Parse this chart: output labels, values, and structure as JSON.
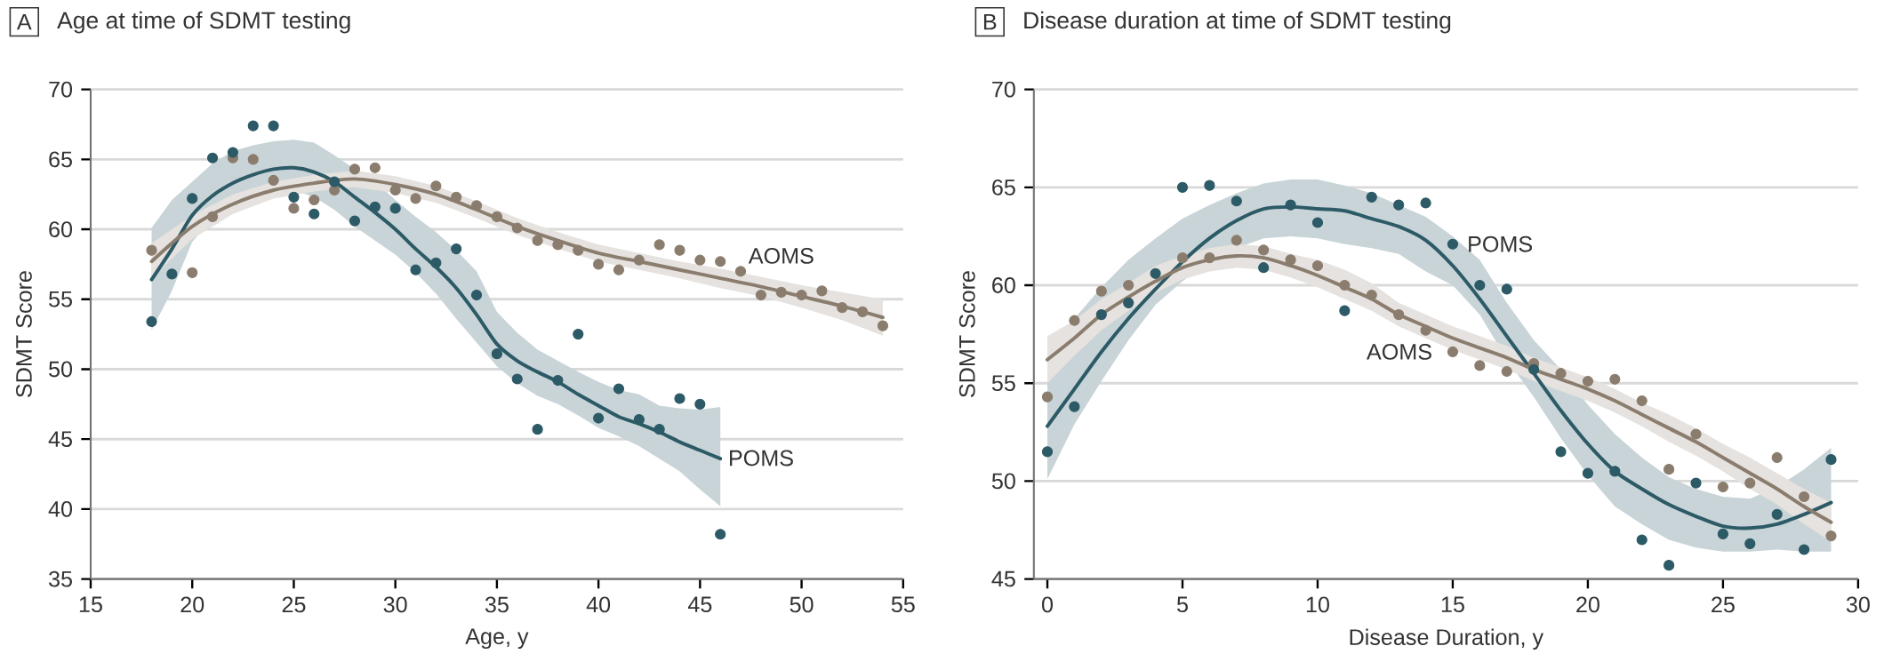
{
  "chart_data": [
    {
      "type": "scatter",
      "title": "Age at time of SDMT testing",
      "xlabel": "Age, y",
      "ylabel": "SDMT Score",
      "xlim": [
        15,
        55
      ],
      "ylim": [
        35,
        70
      ],
      "xticks": [
        15,
        20,
        25,
        30,
        35,
        40,
        45,
        50,
        55
      ],
      "yticks": [
        35,
        40,
        45,
        50,
        55,
        60,
        65,
        70
      ],
      "grid": "y",
      "line_style": "solid",
      "annotations": [
        "A"
      ],
      "series": [
        {
          "type": "line",
          "name": "POMS",
          "color": "#2c5a66",
          "x": [
            18,
            19,
            20,
            21,
            22,
            23,
            24,
            25,
            26,
            27,
            28,
            29,
            30,
            31,
            32,
            33,
            34,
            35,
            36,
            37,
            38,
            39,
            40,
            41,
            42,
            43,
            44,
            45,
            46
          ],
          "values": [
            56.4,
            58.6,
            61.0,
            62.4,
            63.3,
            63.9,
            64.3,
            64.4,
            64.1,
            63.4,
            62.3,
            61.2,
            60.0,
            58.6,
            57.3,
            55.8,
            53.9,
            51.8,
            50.6,
            49.8,
            49.1,
            48.2,
            47.4,
            46.6,
            46.1,
            45.5,
            44.8,
            44.2,
            43.6
          ],
          "upper": [
            60.1,
            62.1,
            63.4,
            64.7,
            65.6,
            66.0,
            66.3,
            66.4,
            66.2,
            65.3,
            64.3,
            63.4,
            62.1,
            60.9,
            59.8,
            58.5,
            57.0,
            54.1,
            52.6,
            51.4,
            50.6,
            49.8,
            49.1,
            48.5,
            48.2,
            47.4,
            47.2,
            47.1,
            47.3
          ],
          "lower": [
            52.8,
            55.6,
            59.1,
            60.8,
            61.8,
            62.6,
            62.9,
            62.8,
            62.3,
            61.4,
            60.2,
            59.2,
            58.2,
            56.9,
            55.4,
            53.6,
            51.9,
            50.2,
            49.0,
            48.1,
            47.5,
            46.7,
            45.8,
            45.2,
            44.5,
            43.6,
            42.7,
            41.4,
            40.2
          ]
        },
        {
          "type": "line",
          "name": "AOMS",
          "color": "#8b7d6e",
          "x": [
            18,
            20,
            22,
            24,
            26,
            28,
            30,
            32,
            34,
            36,
            38,
            40,
            42,
            44,
            46,
            48,
            50,
            52,
            54
          ],
          "values": [
            57.7,
            60.2,
            61.8,
            62.8,
            63.3,
            63.6,
            63.2,
            62.5,
            61.4,
            60.2,
            59.2,
            58.3,
            57.7,
            57.1,
            56.5,
            55.9,
            55.2,
            54.5,
            53.7
          ],
          "upper": [
            59.0,
            61.0,
            62.5,
            63.4,
            63.9,
            64.2,
            63.8,
            63.1,
            62.0,
            60.8,
            59.8,
            58.9,
            58.3,
            57.7,
            57.2,
            56.6,
            56.0,
            55.5,
            55.0
          ],
          "lower": [
            56.5,
            59.3,
            61.1,
            62.2,
            62.7,
            63.0,
            62.6,
            61.9,
            60.8,
            59.6,
            58.6,
            57.7,
            57.1,
            56.5,
            55.8,
            55.2,
            54.4,
            53.5,
            52.4
          ]
        },
        {
          "marker": "circle",
          "color": "#8b7d6e",
          "x": [
            18,
            19,
            20,
            21,
            22,
            23,
            24,
            25,
            26,
            27,
            28,
            29,
            30,
            31,
            32,
            33,
            34,
            35,
            36,
            37,
            38,
            39,
            40,
            41,
            42,
            43,
            44,
            45,
            46,
            47,
            48,
            49,
            50,
            51,
            52,
            53,
            54
          ],
          "values": [
            58.5,
            null,
            56.9,
            60.9,
            65.1,
            65.0,
            63.5,
            61.5,
            62.1,
            62.8,
            64.3,
            64.4,
            62.8,
            62.2,
            63.1,
            62.3,
            61.7,
            60.9,
            60.1,
            59.2,
            58.9,
            58.5,
            57.5,
            57.1,
            57.8,
            58.9,
            58.5,
            57.8,
            57.7,
            57.0,
            55.3,
            55.5,
            55.3,
            55.6,
            54.4,
            54.1,
            53.1
          ]
        },
        {
          "marker": "circle",
          "color": "#2c5a66",
          "x": [
            18,
            19,
            20,
            21,
            22,
            23,
            24,
            25,
            26,
            27,
            28,
            29,
            30,
            31,
            32,
            33,
            34,
            35,
            36,
            37,
            38,
            39,
            40,
            41,
            42,
            43,
            44,
            45,
            46
          ],
          "values": [
            53.4,
            56.8,
            62.2,
            65.1,
            65.5,
            67.4,
            67.4,
            62.3,
            61.1,
            63.4,
            60.6,
            61.6,
            61.5,
            57.1,
            57.6,
            58.6,
            55.3,
            51.1,
            49.3,
            45.7,
            49.2,
            52.5,
            46.5,
            48.6,
            46.4,
            45.7,
            47.9,
            47.5,
            38.2
          ]
        }
      ]
    },
    {
      "type": "scatter",
      "title": "Disease duration at time of SDMT testing",
      "xlabel": "Disease Duration, y",
      "ylabel": "SDMT Score",
      "xlim": [
        -0.5,
        30
      ],
      "ylim": [
        45,
        70
      ],
      "xticks": [
        0,
        5,
        10,
        15,
        20,
        25,
        30
      ],
      "yticks": [
        45,
        50,
        55,
        60,
        65,
        70
      ],
      "grid": "y",
      "line_style": "solid",
      "annotations": [
        "B"
      ],
      "series": [
        {
          "type": "line",
          "name": "POMS",
          "color": "#2c5a66",
          "x": [
            0,
            1,
            2,
            3,
            4,
            5,
            6,
            7,
            8,
            9,
            10,
            11,
            12,
            13,
            14,
            15,
            16,
            17,
            18,
            19,
            20,
            21,
            22,
            23,
            24,
            25,
            26,
            27,
            28,
            29
          ],
          "values": [
            52.8,
            54.7,
            56.6,
            58.3,
            59.8,
            61.2,
            62.4,
            63.3,
            63.9,
            64.0,
            63.9,
            63.8,
            63.4,
            63.0,
            62.3,
            61.0,
            59.3,
            57.4,
            55.5,
            53.6,
            51.9,
            50.5,
            49.6,
            48.8,
            48.2,
            47.7,
            47.6,
            47.8,
            48.3,
            48.9
          ],
          "upper": [
            56.0,
            58.3,
            59.9,
            61.3,
            62.4,
            63.4,
            64.1,
            64.7,
            65.2,
            65.4,
            65.4,
            65.1,
            64.7,
            64.1,
            63.5,
            62.5,
            61.3,
            59.1,
            57.2,
            55.7,
            53.9,
            52.4,
            51.2,
            50.2,
            49.6,
            49.2,
            49.1,
            49.7,
            50.6,
            51.7
          ],
          "lower": [
            50.1,
            52.9,
            55.1,
            57.2,
            59.0,
            60.2,
            61.2,
            61.9,
            62.4,
            62.5,
            62.4,
            62.1,
            61.9,
            61.6,
            60.7,
            60.0,
            58.5,
            56.2,
            54.3,
            52.2,
            50.3,
            48.7,
            47.8,
            47.0,
            46.6,
            46.4,
            46.4,
            46.5,
            46.4,
            46.4
          ]
        },
        {
          "type": "line",
          "name": "AOMS",
          "color": "#8b7d6e",
          "x": [
            0,
            1,
            2,
            3,
            4,
            5,
            6,
            7,
            8,
            9,
            10,
            11,
            12,
            13,
            14,
            15,
            16,
            17,
            18,
            19,
            20,
            21,
            22,
            23,
            24,
            25,
            26,
            27,
            28,
            29
          ],
          "values": [
            56.2,
            57.3,
            58.5,
            59.4,
            60.2,
            60.9,
            61.3,
            61.5,
            61.4,
            61.0,
            60.5,
            59.9,
            59.3,
            58.5,
            57.9,
            57.3,
            56.8,
            56.3,
            55.7,
            55.2,
            54.7,
            54.1,
            53.4,
            52.7,
            52.0,
            51.2,
            50.4,
            49.6,
            48.7,
            47.9
          ],
          "upper": [
            57.4,
            58.2,
            59.3,
            60.1,
            61.0,
            61.5,
            61.9,
            62.1,
            62.0,
            61.6,
            61.3,
            60.8,
            60.1,
            59.1,
            58.5,
            57.9,
            57.4,
            56.9,
            56.3,
            55.8,
            55.3,
            54.7,
            54.0,
            53.4,
            52.7,
            51.9,
            51.2,
            50.4,
            49.6,
            48.9
          ],
          "lower": [
            55.0,
            56.4,
            57.7,
            58.7,
            59.6,
            60.3,
            60.7,
            60.9,
            60.8,
            60.4,
            59.9,
            59.3,
            58.7,
            57.9,
            57.3,
            56.7,
            56.2,
            55.7,
            55.1,
            54.6,
            54.1,
            53.5,
            52.8,
            52.0,
            51.3,
            50.5,
            49.6,
            48.8,
            47.8,
            46.9
          ]
        },
        {
          "marker": "circle",
          "color": "#8b7d6e",
          "x": [
            0,
            1,
            2,
            3,
            4,
            5,
            6,
            7,
            8,
            9,
            10,
            11,
            12,
            13,
            14,
            15,
            16,
            17,
            18,
            19,
            20,
            21,
            22,
            23,
            24,
            25,
            26,
            27,
            28,
            29
          ],
          "values": [
            54.3,
            58.2,
            59.7,
            60.0,
            null,
            61.4,
            61.4,
            62.3,
            61.8,
            61.3,
            61.0,
            60.0,
            59.5,
            58.5,
            57.7,
            56.6,
            55.9,
            55.6,
            56.0,
            55.5,
            55.1,
            55.2,
            54.1,
            50.6,
            52.4,
            49.7,
            49.9,
            51.2,
            49.2,
            47.2
          ]
        },
        {
          "marker": "circle",
          "color": "#2c5a66",
          "x": [
            0,
            1,
            2,
            3,
            4,
            5,
            6,
            7,
            8,
            9,
            10,
            11,
            12,
            13,
            14,
            15,
            16,
            17,
            18,
            19,
            20,
            21,
            22,
            23,
            24,
            25,
            26,
            27,
            28,
            29
          ],
          "values": [
            51.5,
            53.8,
            58.5,
            59.1,
            60.6,
            65.0,
            65.1,
            64.3,
            60.9,
            64.1,
            63.2,
            58.7,
            64.5,
            64.1,
            64.2,
            62.1,
            60.0,
            59.8,
            55.7,
            51.5,
            50.4,
            50.5,
            47.0,
            45.7,
            49.9,
            47.3,
            46.8,
            48.3,
            46.5,
            51.1
          ]
        }
      ]
    }
  ]
}
